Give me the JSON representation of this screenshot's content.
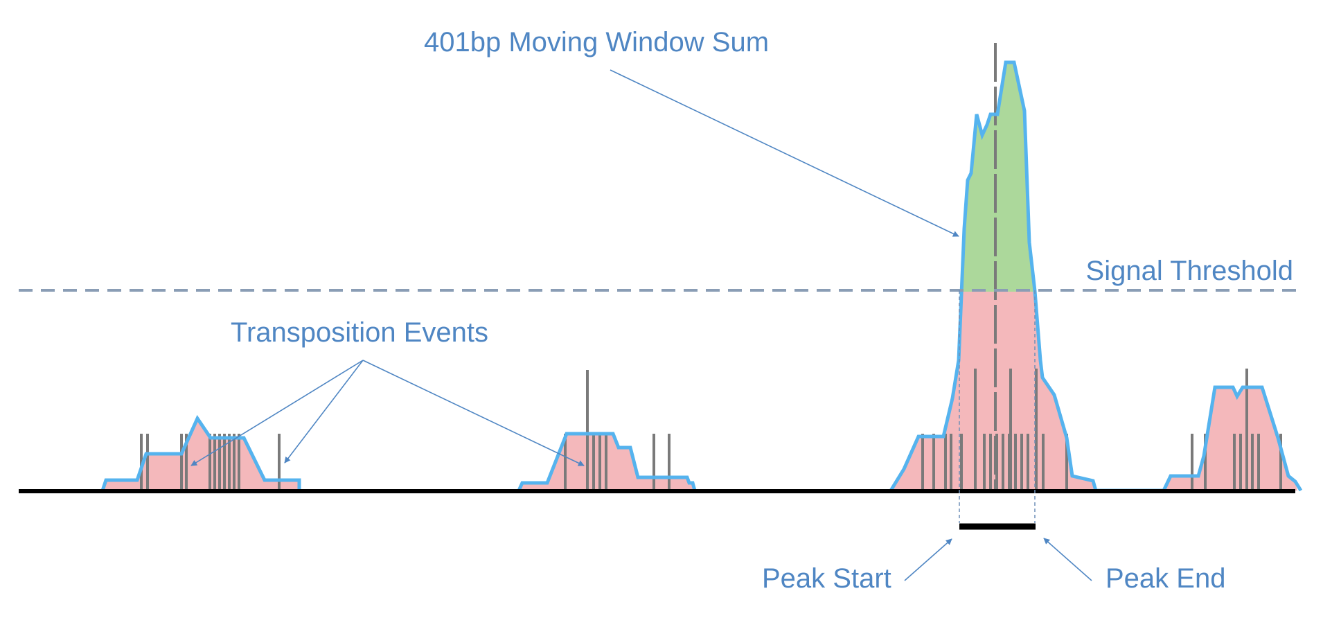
{
  "labels": {
    "moving_window_sum": "401bp Moving Window Sum",
    "signal_threshold": "Signal Threshold",
    "transposition_events": "Transposition Events",
    "peak_start": "Peak Start",
    "peak_end": "Peak End"
  },
  "colors": {
    "label_text": "#4f86c3",
    "below_threshold_fill": "#f4b8bb",
    "above_threshold_fill": "#acd89b",
    "signal_outline": "#55b3ee",
    "event_marks": "#7a7a7a",
    "threshold_line": "#8a9db5",
    "baseline": "#000000"
  }
}
